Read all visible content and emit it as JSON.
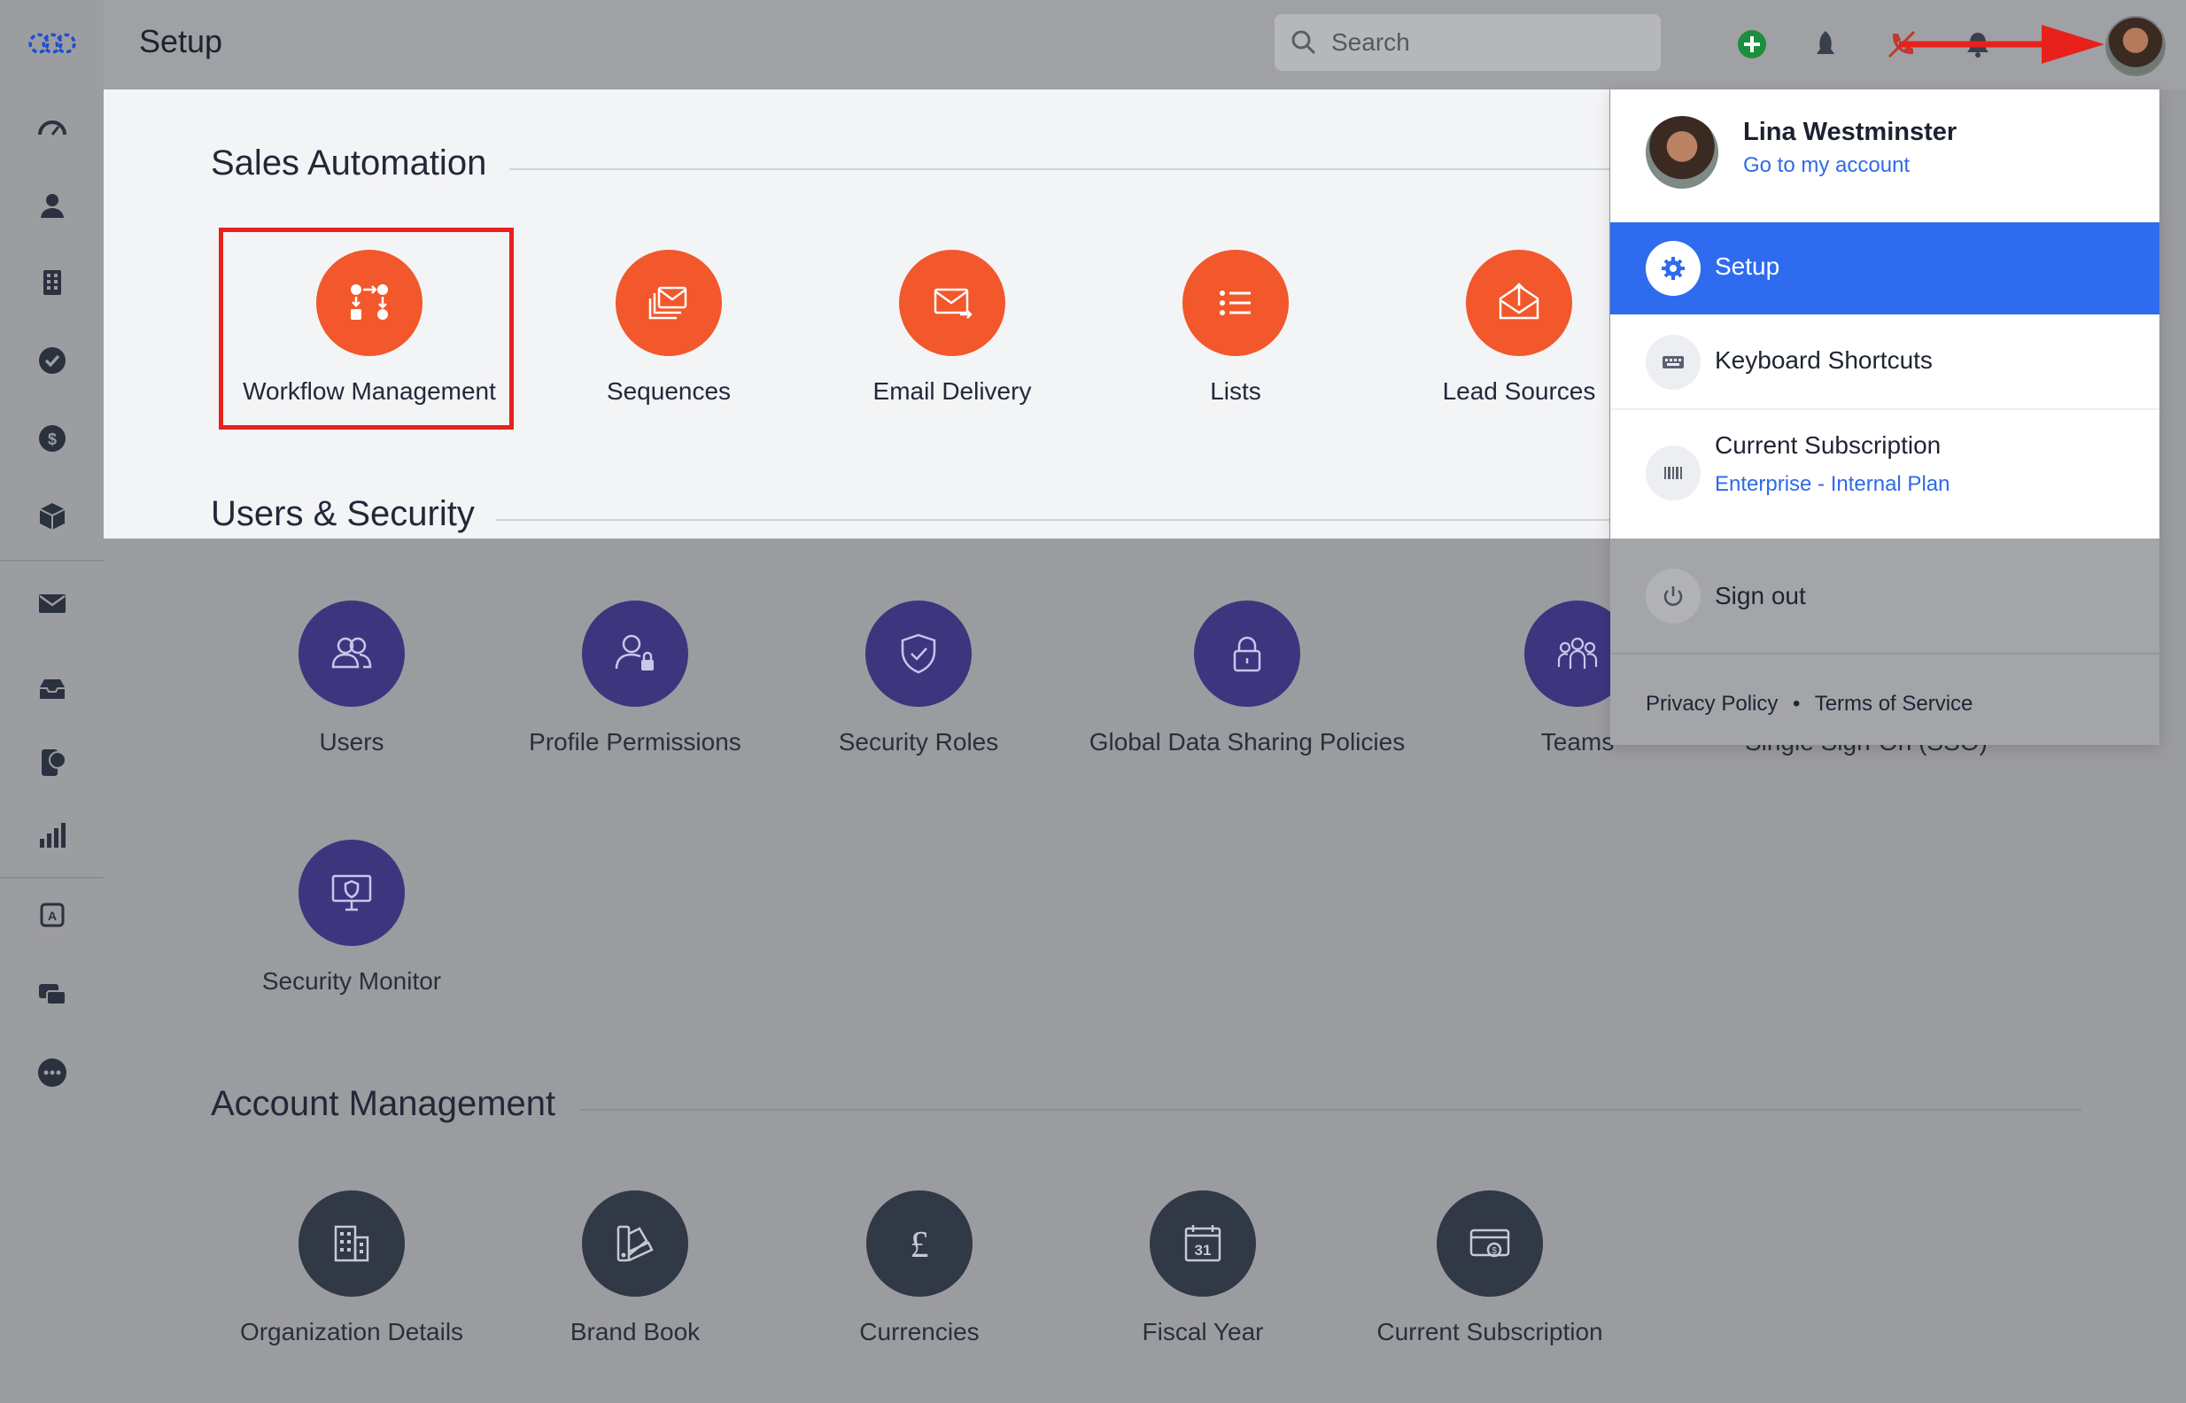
{
  "page_title": "Setup",
  "search": {
    "placeholder": "Search"
  },
  "sections": {
    "sales_automation": {
      "title": "Sales Automation",
      "items": [
        "Workflow Management",
        "Sequences",
        "Email Delivery",
        "Lists",
        "Lead Sources"
      ]
    },
    "users_security": {
      "title": "Users & Security",
      "items": [
        "Users",
        "Profile Permissions",
        "Security Roles",
        "Global Data Sharing Policies",
        "Teams",
        "Security Monitor"
      ],
      "partial_text": "Single Sign-On (SSO)"
    },
    "account_management": {
      "title": "Account Management",
      "items": [
        "Organization Details",
        "Brand Book",
        "Currencies",
        "Fiscal Year",
        "Current Subscription"
      ]
    }
  },
  "dropdown": {
    "user_name": "Lina Westminster",
    "account_link": "Go to my account",
    "setup": "Setup",
    "keyboard_shortcuts": "Keyboard Shortcuts",
    "current_subscription": "Current Subscription",
    "plan": "Enterprise - Internal Plan",
    "sign_out": "Sign out",
    "privacy_policy": "Privacy Policy",
    "separator": "•",
    "terms": "Terms of Service"
  },
  "fiscal_day": "31",
  "colors": {
    "accent_orange": "#f2582b",
    "accent_purple": "#3e357f",
    "accent_navy": "#313846",
    "highlight_blue": "#2f6bef",
    "annotation_red": "#e8211c"
  }
}
